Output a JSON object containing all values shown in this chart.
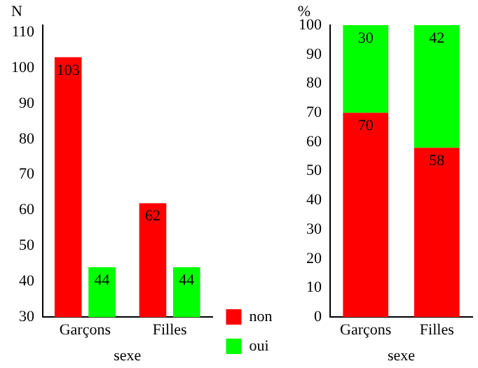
{
  "chart_data": [
    {
      "type": "bar",
      "xlabel": "sexe",
      "ylabel": "N",
      "categories": [
        "Garçons",
        "Filles"
      ],
      "series": [
        {
          "name": "non",
          "color": "#ff0000",
          "values": [
            103,
            62
          ]
        },
        {
          "name": "oui",
          "color": "#00ff00",
          "values": [
            44,
            44
          ]
        }
      ],
      "ylim": [
        30,
        112
      ],
      "yticks": [
        30,
        40,
        50,
        60,
        70,
        80,
        90,
        100,
        110
      ],
      "grid": false,
      "data_labels": true,
      "legend": "right"
    },
    {
      "type": "bar",
      "xlabel": "sexe",
      "ylabel": "%",
      "categories": [
        "Garçons",
        "Filles"
      ],
      "stacked": true,
      "series": [
        {
          "color": "#ff0000",
          "values": [
            70,
            58
          ]
        },
        {
          "color": "#00ff00",
          "values": [
            30,
            42
          ]
        }
      ],
      "ylim": [
        0,
        100
      ],
      "yticks": [
        0,
        10,
        20,
        30,
        40,
        50,
        60,
        70,
        80,
        90,
        100
      ],
      "grid": false,
      "data_labels": true,
      "legend": false
    }
  ]
}
